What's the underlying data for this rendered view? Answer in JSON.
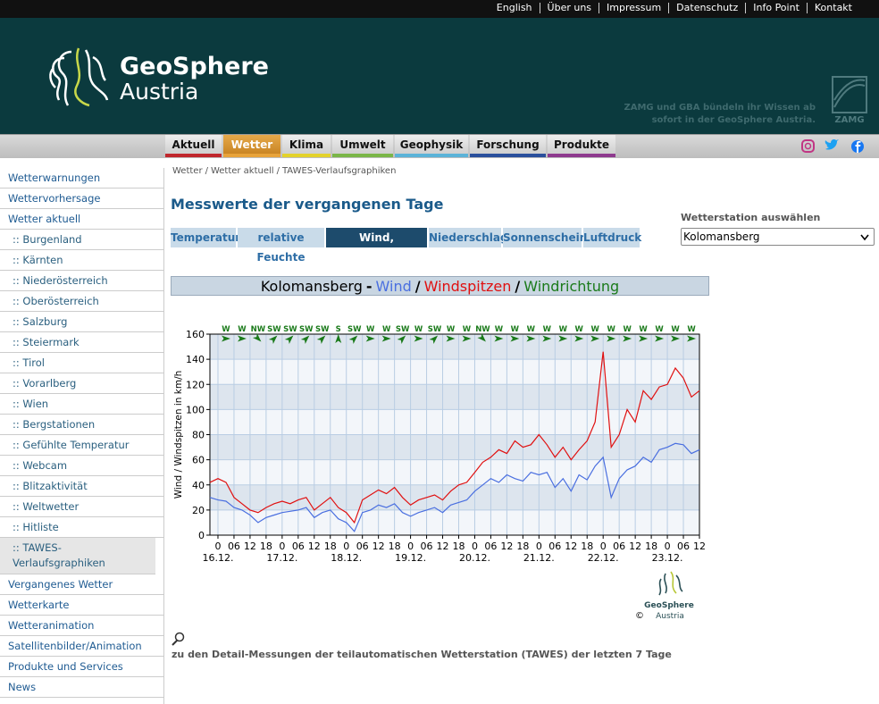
{
  "top_links": [
    "English",
    "Über uns",
    "Impressum",
    "Datenschutz",
    "Info Point",
    "Kontakt"
  ],
  "logo": {
    "line1": "GeoSphere",
    "line2": "Austria"
  },
  "tagline": [
    "ZAMG und GBA bündeln ihr Wissen ab",
    "sofort in der GeoSphere Austria."
  ],
  "zamg_label": "ZAMG",
  "nav": [
    {
      "label": "Aktuell",
      "color": "#c0272d"
    },
    {
      "label": "Wetter",
      "color": "#e8a33a"
    },
    {
      "label": "Klima",
      "color": "#e3d22b"
    },
    {
      "label": "Umwelt",
      "color": "#7ab648"
    },
    {
      "label": "Geophysik",
      "color": "#5bb3d8"
    },
    {
      "label": "Forschung",
      "color": "#2a4f9c"
    },
    {
      "label": "Produkte",
      "color": "#8e3a8e"
    }
  ],
  "nav_active": 1,
  "sidebar": [
    "Wetterwarnungen",
    "Wettervorhersage",
    "Wetter aktuell",
    ":: Burgenland",
    ":: Kärnten",
    ":: Niederösterreich",
    ":: Oberösterreich",
    ":: Salzburg",
    ":: Steiermark",
    ":: Tirol",
    ":: Vorarlberg",
    ":: Wien",
    ":: Bergstationen",
    ":: Gefühlte Temperatur",
    ":: Webcam",
    ":: Blitzaktivität",
    ":: Weltwetter",
    ":: Hitliste",
    ":: TAWES-Verlaufsgraphiken",
    "Vergangenes Wetter",
    "Wetterkarte",
    "Wetteranimation",
    "Satellitenbilder/Animation",
    "Produkte und Services",
    "News"
  ],
  "sidebar_active": 18,
  "breadcrumb": [
    "Wetter",
    "Wetter aktuell",
    "TAWES-Verlaufsgraphiken"
  ],
  "breadcrumb_separator": "/",
  "heading": "Messwerte der vergangenen Tage",
  "tabs": [
    "Temperatur",
    "relative Feuchte",
    "Wind, Windspitzen",
    "Niederschlag",
    "Sonnenschein",
    "Luftdruck"
  ],
  "tab_active": 2,
  "station_label": "Wetterstation auswählen",
  "station_value": "Kolomansberg",
  "chart_data": {
    "type": "line",
    "title_station": "Kolomansberg",
    "title_separators": [
      "-",
      "/",
      "/"
    ],
    "ylabel": "Wind / Windspitzen in km/h",
    "xlim": [
      -3,
      180
    ],
    "ylim": [
      0,
      160
    ],
    "yticks": [
      0,
      20,
      40,
      60,
      80,
      100,
      120,
      140,
      160
    ],
    "xticks": [
      0,
      {
        "value": 6,
        "label": "06"
      },
      12,
      18,
      {
        "value": 24,
        "label": "0"
      },
      {
        "value": 30,
        "label": "06"
      },
      {
        "value": 36,
        "label": "12"
      },
      {
        "value": 42,
        "label": "18"
      },
      {
        "value": 48,
        "label": "0"
      },
      {
        "value": 54,
        "label": "06"
      },
      {
        "value": 60,
        "label": "12"
      },
      {
        "value": 66,
        "label": "18"
      },
      {
        "value": 72,
        "label": "0"
      },
      {
        "value": 78,
        "label": "06"
      },
      {
        "value": 84,
        "label": "12"
      },
      {
        "value": 90,
        "label": "18"
      },
      {
        "value": 96,
        "label": "0"
      },
      {
        "value": 102,
        "label": "06"
      },
      {
        "value": 108,
        "label": "12"
      },
      {
        "value": 114,
        "label": "18"
      },
      {
        "value": 120,
        "label": "0"
      },
      {
        "value": 126,
        "label": "06"
      },
      {
        "value": 132,
        "label": "12"
      },
      {
        "value": 138,
        "label": "18"
      },
      {
        "value": 144,
        "label": "0"
      },
      {
        "value": 150,
        "label": "06"
      },
      {
        "value": 156,
        "label": "12"
      },
      {
        "value": 162,
        "label": "18"
      },
      {
        "value": 168,
        "label": "0"
      },
      {
        "value": 174,
        "label": "06"
      },
      {
        "value": 180,
        "label": "12"
      }
    ],
    "date_labels": [
      {
        "value": 0,
        "label": "16.12."
      },
      {
        "value": 24,
        "label": "17.12."
      },
      {
        "value": 48,
        "label": "18.12."
      },
      {
        "value": 72,
        "label": "19.12."
      },
      {
        "value": 96,
        "label": "20.12."
      },
      {
        "value": 120,
        "label": "21.12."
      },
      {
        "value": 144,
        "label": "22.12."
      },
      {
        "value": 168,
        "label": "23.12."
      }
    ],
    "grid": true,
    "x": [
      -3,
      0,
      3,
      6,
      9,
      12,
      15,
      18,
      21,
      24,
      27,
      30,
      33,
      36,
      39,
      42,
      45,
      48,
      51,
      54,
      57,
      60,
      63,
      66,
      69,
      72,
      75,
      78,
      81,
      84,
      87,
      90,
      93,
      96,
      99,
      102,
      105,
      108,
      111,
      114,
      117,
      120,
      123,
      126,
      129,
      132,
      135,
      138,
      141,
      144,
      147,
      150,
      153,
      156,
      159,
      162,
      165,
      168,
      171,
      174,
      177,
      180
    ],
    "series": [
      {
        "name": "Wind",
        "color": "#4a6fe0",
        "values": [
          30,
          28,
          27,
          22,
          20,
          16,
          10,
          14,
          16,
          18,
          19,
          20,
          22,
          14,
          18,
          20,
          13,
          10,
          3,
          18,
          20,
          24,
          22,
          25,
          18,
          15,
          18,
          20,
          22,
          18,
          24,
          26,
          28,
          35,
          40,
          45,
          42,
          48,
          45,
          43,
          50,
          48,
          50,
          38,
          45,
          35,
          48,
          44,
          55,
          62,
          30,
          45,
          52,
          55,
          62,
          58,
          68,
          70,
          73,
          72,
          65,
          68
        ]
      },
      {
        "name": "Windspitzen",
        "color": "#e01010",
        "values": [
          42,
          45,
          42,
          30,
          25,
          20,
          18,
          22,
          25,
          27,
          25,
          28,
          30,
          20,
          25,
          30,
          22,
          18,
          10,
          28,
          32,
          36,
          33,
          38,
          30,
          24,
          28,
          30,
          32,
          28,
          35,
          40,
          42,
          50,
          58,
          62,
          68,
          65,
          75,
          70,
          72,
          80,
          72,
          62,
          70,
          60,
          68,
          75,
          90,
          146,
          70,
          80,
          100,
          90,
          115,
          108,
          118,
          120,
          133,
          125,
          110,
          115
        ]
      }
    ],
    "directions": {
      "name": "Windrichtung",
      "color": "#1a7a1a",
      "x": [
        3,
        9,
        15,
        21,
        27,
        33,
        39,
        45,
        51,
        57,
        63,
        69,
        75,
        81,
        87,
        93,
        99,
        105,
        111,
        117,
        123,
        129,
        135,
        141,
        147,
        153,
        159,
        165,
        171,
        177
      ],
      "values": [
        "W",
        "W",
        "NW",
        "SW",
        "SW",
        "SW",
        "SW",
        "S",
        "SW",
        "W",
        "W",
        "SW",
        "W",
        "SW",
        "W",
        "W",
        "NW",
        "W",
        "W",
        "W",
        "W",
        "W",
        "W",
        "W",
        "W",
        "W",
        "W",
        "W",
        "W",
        "W"
      ]
    },
    "credit": {
      "line1": "GeoSphere",
      "line2": "Austria",
      "symbol": "©"
    }
  },
  "footer_note": "zu den Detail-Messungen der teilautomatischen Wetterstation (TAWES) der letzten 7 Tage"
}
